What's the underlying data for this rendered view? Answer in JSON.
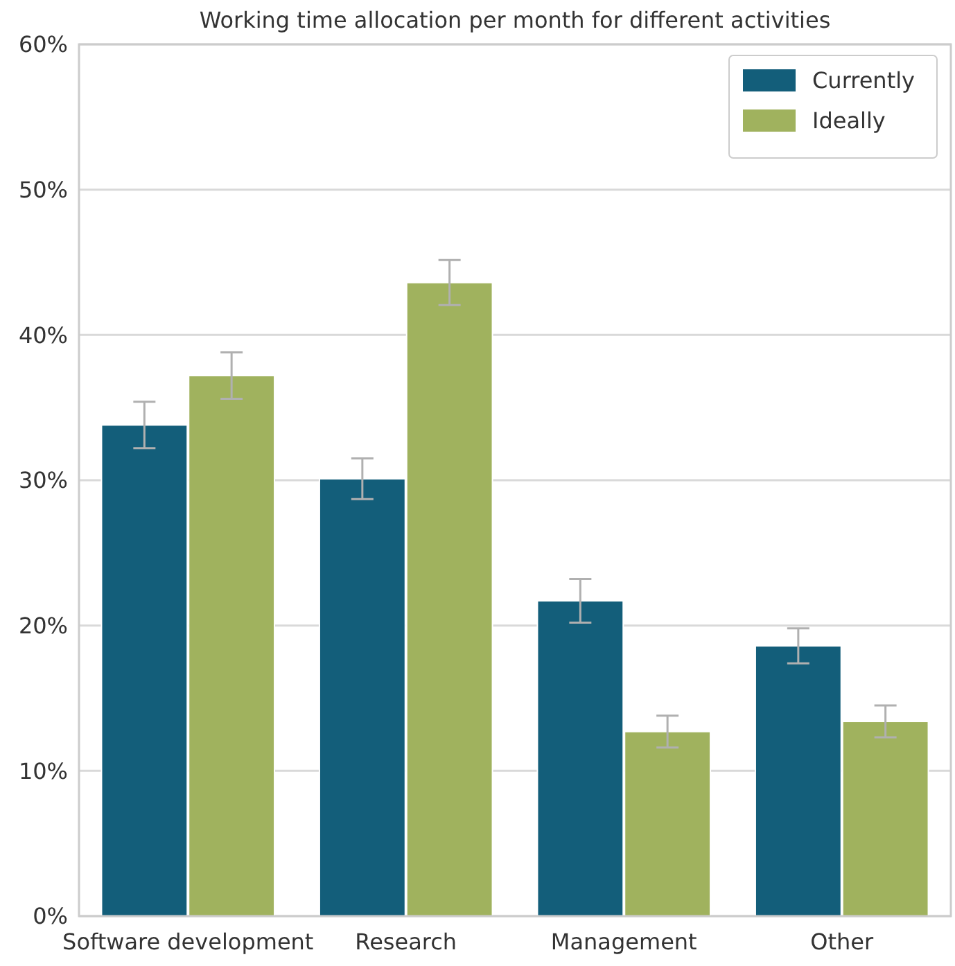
{
  "chart_data": {
    "type": "bar",
    "title": "Working time allocation per month for different activities",
    "categories": [
      "Software development",
      "Research",
      "Management",
      "Other"
    ],
    "series": [
      {
        "name": "Currently",
        "color": "#135e7a",
        "values": [
          33.8,
          30.1,
          21.7,
          18.6
        ],
        "errors": [
          1.6,
          1.4,
          1.5,
          1.2
        ]
      },
      {
        "name": "Ideally",
        "color": "#a0b25e",
        "values": [
          37.2,
          43.6,
          12.7,
          13.4
        ],
        "errors": [
          1.6,
          1.55,
          1.1,
          1.1
        ]
      }
    ],
    "ylim": [
      0,
      60
    ],
    "yticks": [
      {
        "value": 0,
        "label": "0%"
      },
      {
        "value": 10,
        "label": "10%"
      },
      {
        "value": 20,
        "label": "20%"
      },
      {
        "value": 30,
        "label": "30%"
      },
      {
        "value": 40,
        "label": "40%"
      },
      {
        "value": 50,
        "label": "50%"
      },
      {
        "value": 60,
        "label": "60%"
      }
    ],
    "grid": "y",
    "legend": "top right"
  }
}
